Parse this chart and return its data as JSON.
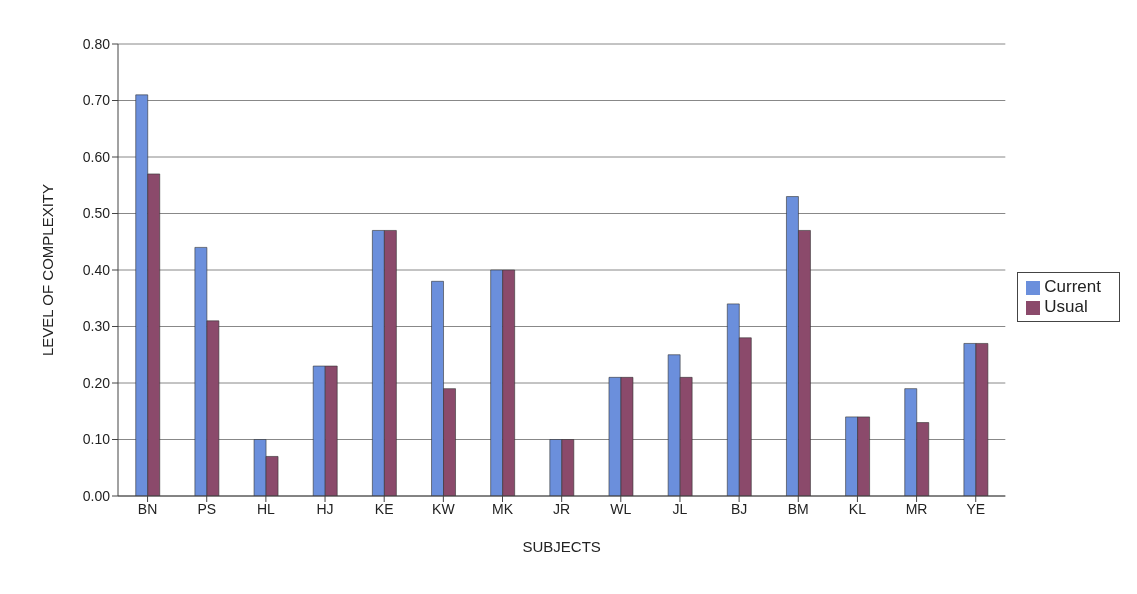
{
  "chart_data": {
    "type": "bar",
    "xlabel": "SUBJECTS",
    "ylabel": "LEVEL OF COMPLEXITY",
    "categories": [
      "BN",
      "PS",
      "HL",
      "HJ",
      "KE",
      "KW",
      "MK",
      "JR",
      "WL",
      "JL",
      "BJ",
      "BM",
      "KL",
      "MR",
      "YE"
    ],
    "series": [
      {
        "name": "Current",
        "color": "#6b8fdc",
        "values": [
          0.71,
          0.44,
          0.1,
          0.23,
          0.47,
          0.38,
          0.4,
          0.1,
          0.21,
          0.25,
          0.34,
          0.53,
          0.14,
          0.19,
          0.27
        ]
      },
      {
        "name": "Usual",
        "color": "#8b4a6b",
        "values": [
          0.57,
          0.31,
          0.07,
          0.23,
          0.47,
          0.19,
          0.4,
          0.1,
          0.21,
          0.21,
          0.28,
          0.47,
          0.14,
          0.13,
          0.27
        ]
      }
    ],
    "ylim": [
      0,
      0.8
    ],
    "yticks": [
      {
        "value": 0,
        "label": "0.00"
      },
      {
        "value": 0.1,
        "label": "0.10"
      },
      {
        "value": 0.2,
        "label": "0.20"
      },
      {
        "value": 0.3,
        "label": "0.30"
      },
      {
        "value": 0.4,
        "label": "0.40"
      },
      {
        "value": 0.5,
        "label": "0.50"
      },
      {
        "value": 0.6,
        "label": "0.60"
      },
      {
        "value": 0.7,
        "label": "0.70"
      },
      {
        "value": 0.8,
        "label": "0.80"
      }
    ],
    "grid": "y",
    "legend": "right"
  }
}
